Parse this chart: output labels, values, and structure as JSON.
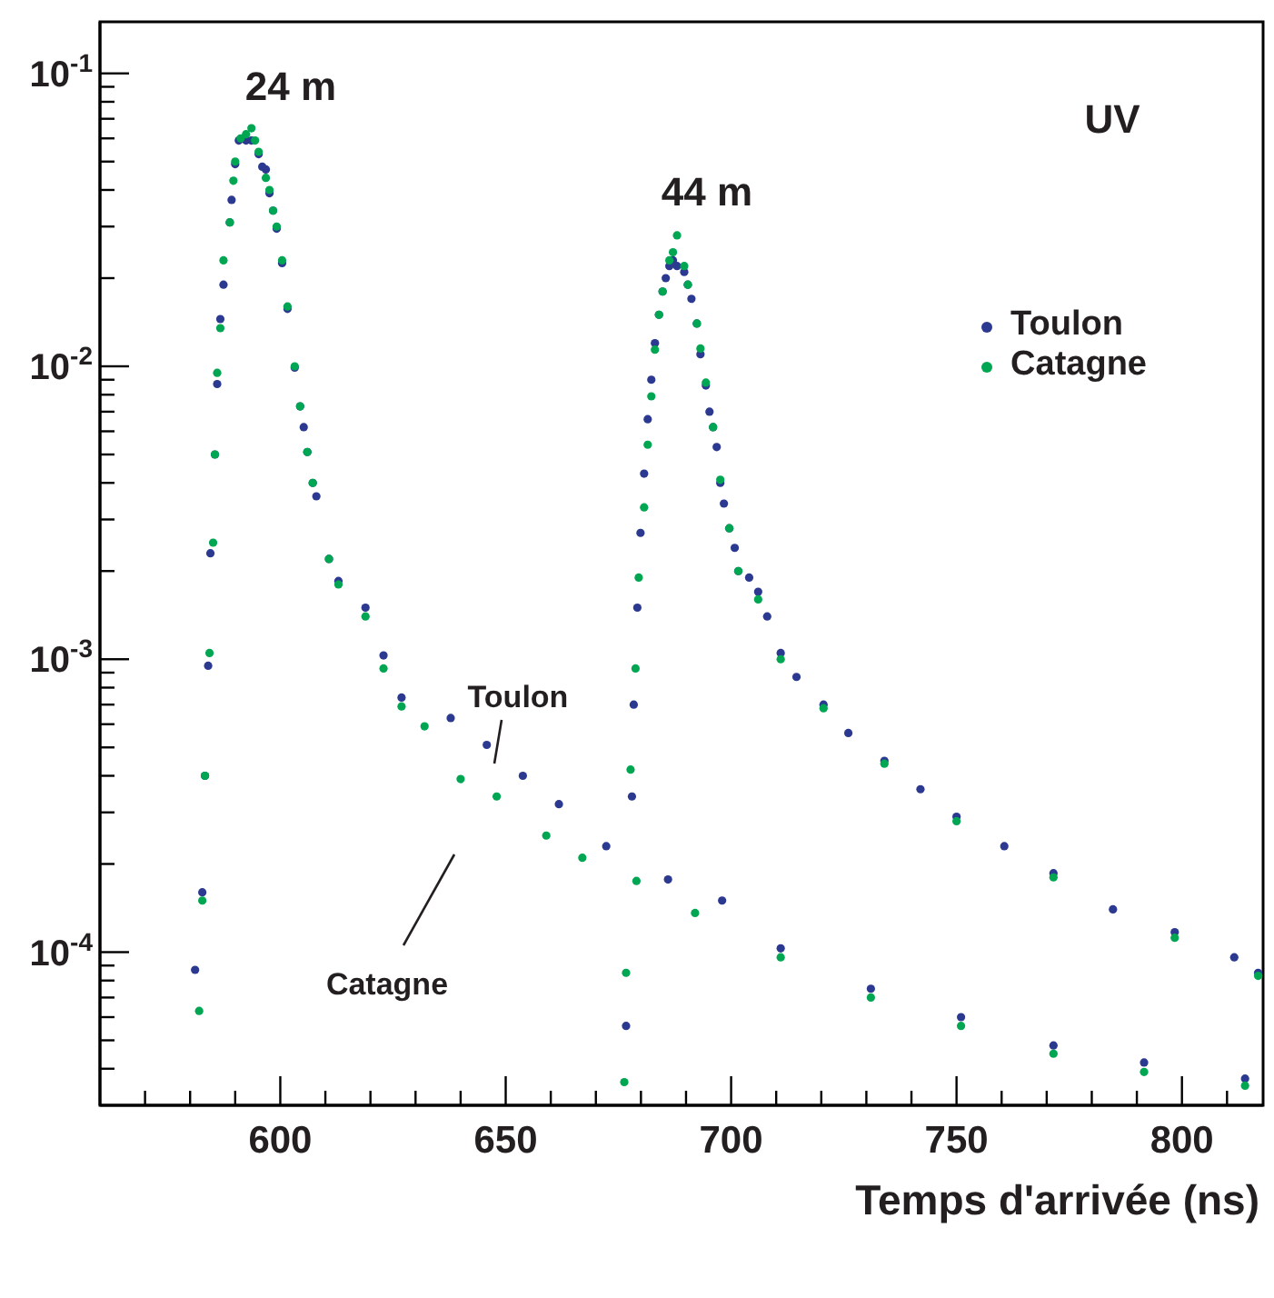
{
  "chart_data": {
    "type": "scatter",
    "xlabel": "Temps d'arrivée (ns)",
    "log": "y",
    "legend": "top right",
    "marker": "circle",
    "xlim": [
      560,
      818
    ],
    "ylim": [
      3e-05,
      0.15
    ],
    "xticks": [
      {
        "value": 570,
        "label": null
      },
      {
        "value": 580,
        "label": null
      },
      {
        "value": 590,
        "label": null
      },
      600,
      {
        "value": 610,
        "label": null
      },
      {
        "value": 620,
        "label": null
      },
      {
        "value": 630,
        "label": null
      },
      {
        "value": 640,
        "label": null
      },
      650,
      {
        "value": 660,
        "label": null
      },
      {
        "value": 670,
        "label": null
      },
      {
        "value": 680,
        "label": null
      },
      {
        "value": 690,
        "label": null
      },
      700,
      {
        "value": 710,
        "label": null
      },
      {
        "value": 720,
        "label": null
      },
      {
        "value": 730,
        "label": null
      },
      {
        "value": 740,
        "label": null
      },
      750,
      {
        "value": 760,
        "label": null
      },
      {
        "value": 770,
        "label": null
      },
      {
        "value": 780,
        "label": null
      },
      {
        "value": 790,
        "label": null
      },
      800,
      {
        "value": 810,
        "label": null
      }
    ],
    "yticks": [
      {
        "value": 4e-05,
        "label": null
      },
      {
        "value": 5e-05,
        "label": null
      },
      {
        "value": 6e-05,
        "label": null
      },
      {
        "value": 7e-05,
        "label": null
      },
      {
        "value": 8e-05,
        "label": null
      },
      {
        "value": 9e-05,
        "label": null
      },
      {
        "value": 0.0001,
        "label": "10$^{-4}$"
      },
      {
        "value": 0.0002,
        "label": null
      },
      {
        "value": 0.0003,
        "label": null
      },
      {
        "value": 0.0004,
        "label": null
      },
      {
        "value": 0.0005,
        "label": null
      },
      {
        "value": 0.0006,
        "label": null
      },
      {
        "value": 0.0007,
        "label": null
      },
      {
        "value": 0.0008,
        "label": null
      },
      {
        "value": 0.0009,
        "label": null
      },
      {
        "value": 0.001,
        "label": "10$^{-3}$"
      },
      {
        "value": 0.002,
        "label": null
      },
      {
        "value": 0.003,
        "label": null
      },
      {
        "value": 0.004,
        "label": null
      },
      {
        "value": 0.005,
        "label": null
      },
      {
        "value": 0.006,
        "label": null
      },
      {
        "value": 0.007,
        "label": null
      },
      {
        "value": 0.008,
        "label": null
      },
      {
        "value": 0.009,
        "label": null
      },
      {
        "value": 0.01,
        "label": "10$^{-2}$"
      },
      {
        "value": 0.02,
        "label": null
      },
      {
        "value": 0.03,
        "label": null
      },
      {
        "value": 0.04,
        "label": null
      },
      {
        "value": 0.05,
        "label": null
      },
      {
        "value": 0.06,
        "label": null
      },
      {
        "value": 0.07,
        "label": null
      },
      {
        "value": 0.08,
        "label": null
      },
      {
        "value": 0.09,
        "label": null
      },
      {
        "value": 0.1,
        "label": "10$^{-1}$"
      }
    ],
    "series": [
      {
        "name": "Toulon",
        "color": "#2b3990",
        "x": [
          581.1,
          582.7,
          583.3,
          584.0,
          584.5,
          585.5,
          586.0,
          586.7,
          587.4,
          588.8,
          589.2,
          590.0,
          590.8,
          592.4,
          593.6,
          595.2,
          596.0,
          596.8,
          597.6,
          598.4,
          599.2,
          600.4,
          601.6,
          603.2,
          604.4,
          605.2,
          606.0,
          607.2,
          608.0,
          610.8,
          612.9,
          618.9,
          622.9,
          626.9,
          637.8,
          645.8,
          653.8,
          661.8,
          672.3,
          686,
          698,
          711,
          731,
          751,
          771.5,
          791.6,
          814,
          676.7,
          678.0,
          678.4,
          679.2,
          679.9,
          680.7,
          681.5,
          682.3,
          683.1,
          684.0,
          684.8,
          685.5,
          686.3,
          687.1,
          688.0,
          689.6,
          690.4,
          691.2,
          692.4,
          693.2,
          694.4,
          695.2,
          696.0,
          696.8,
          697.6,
          698.4,
          699.6,
          700.8,
          701.6,
          704,
          706,
          708,
          711,
          714.5,
          720.5,
          726,
          734,
          742,
          750,
          760.6,
          771.5,
          784.7,
          798.4,
          811.6,
          816.9
        ],
        "values": [
          8.7e-05,
          0.00016,
          0.0004,
          0.00095,
          0.0023,
          0.005,
          0.0087,
          0.0145,
          0.019,
          0.031,
          0.037,
          0.049,
          0.059,
          0.059,
          0.059,
          0.053,
          0.048,
          0.047,
          0.039,
          0.034,
          0.0295,
          0.0225,
          0.0157,
          0.0099,
          0.0073,
          0.0062,
          0.0051,
          0.004,
          0.0036,
          0.0022,
          0.00185,
          0.0015,
          0.00103,
          0.00074,
          0.00063,
          0.00051,
          0.0004,
          0.00032,
          0.00023,
          0.000177,
          0.00015,
          0.000103,
          7.5e-05,
          6e-05,
          4.8e-05,
          4.2e-05,
          3.7e-05,
          5.6e-05,
          0.00034,
          0.0007,
          0.0015,
          0.0027,
          0.0043,
          0.0066,
          0.009,
          0.012,
          0.015,
          0.018,
          0.02,
          0.022,
          0.023,
          0.022,
          0.021,
          0.019,
          0.017,
          0.014,
          0.011,
          0.0086,
          0.007,
          0.0062,
          0.0053,
          0.004,
          0.0034,
          0.0028,
          0.0024,
          0.002,
          0.0019,
          0.0017,
          0.0014,
          0.00105,
          0.00087,
          0.0007,
          0.00056,
          0.00045,
          0.00036,
          0.00029,
          0.00023,
          0.000186,
          0.00014,
          0.000117,
          9.6e-05,
          8.5e-05
        ]
      },
      {
        "name": "Catagne",
        "color": "#00a651",
        "x": [
          582.0,
          582.7,
          583.3,
          584.3,
          585.1,
          585.5,
          586.0,
          586.7,
          587.4,
          588.8,
          589.6,
          590.0,
          591.2,
          592.4,
          593.6,
          594.4,
          595.2,
          596.8,
          597.6,
          598.4,
          599.2,
          600.4,
          601.6,
          603.2,
          604.4,
          606.0,
          607.2,
          610.8,
          612.9,
          618.9,
          622.9,
          626.9,
          632,
          640,
          648,
          659,
          667,
          679,
          692,
          711,
          731,
          751,
          771.5,
          791.6,
          814,
          676.3,
          676.7,
          677.7,
          678.8,
          679.5,
          680.7,
          681.5,
          682.3,
          683.1,
          684.0,
          684.8,
          686.3,
          687.1,
          688.0,
          689.6,
          690.4,
          692.4,
          693.2,
          694.4,
          696.0,
          697.6,
          699.6,
          701.6,
          706,
          711,
          720.5,
          734,
          750,
          771.5,
          798.4,
          816.9
        ],
        "values": [
          6.3e-05,
          0.00015,
          0.0004,
          0.00105,
          0.0025,
          0.005,
          0.0095,
          0.0135,
          0.023,
          0.031,
          0.043,
          0.05,
          0.06,
          0.062,
          0.065,
          0.059,
          0.054,
          0.044,
          0.04,
          0.034,
          0.03,
          0.023,
          0.016,
          0.01,
          0.0073,
          0.0051,
          0.004,
          0.0022,
          0.0018,
          0.0014,
          0.00093,
          0.00069,
          0.00059,
          0.00039,
          0.00034,
          0.00025,
          0.00021,
          0.000175,
          0.000136,
          9.6e-05,
          7e-05,
          5.6e-05,
          4.5e-05,
          3.9e-05,
          3.5e-05,
          3.6e-05,
          8.5e-05,
          0.00042,
          0.00093,
          0.0019,
          0.0033,
          0.0054,
          0.0079,
          0.0114,
          0.015,
          0.018,
          0.023,
          0.0245,
          0.028,
          0.022,
          0.019,
          0.014,
          0.0115,
          0.0088,
          0.0062,
          0.0041,
          0.0028,
          0.002,
          0.0016,
          0.001,
          0.00068,
          0.00044,
          0.00028,
          0.00018,
          0.000112,
          8.3e-05
        ]
      }
    ],
    "annotations": [
      "24 m",
      "44 m",
      "UV",
      "Toulon",
      "Catagne"
    ]
  }
}
